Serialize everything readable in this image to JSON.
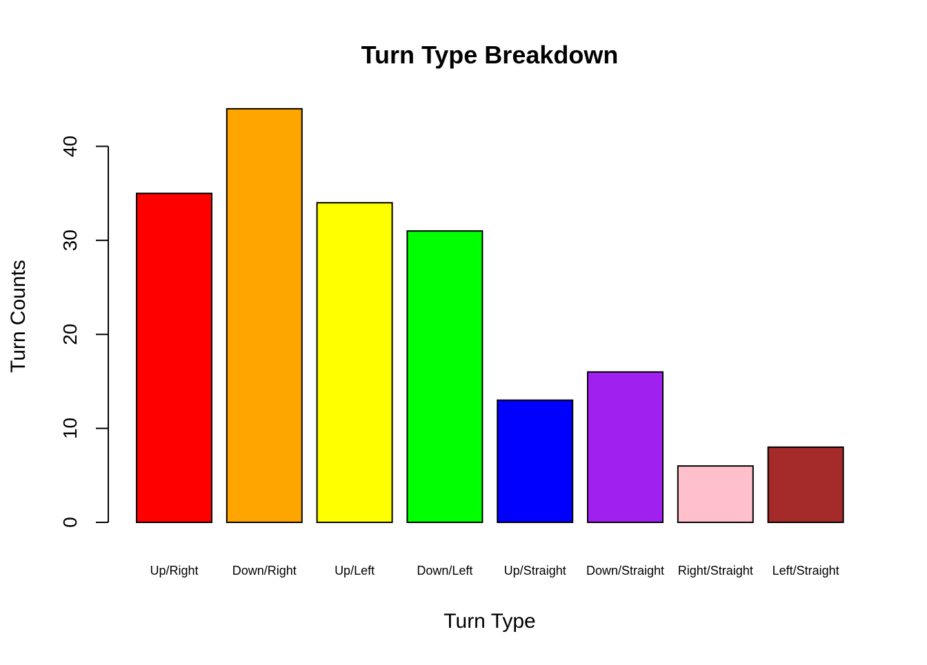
{
  "chart_data": {
    "type": "bar",
    "title": "Turn Type Breakdown",
    "xlabel": "Turn Type",
    "ylabel": "Turn Counts",
    "categories": [
      "Up/Right",
      "Down/Right",
      "Up/Left",
      "Down/Left",
      "Up/Straight",
      "Down/Straight",
      "Right/Straight",
      "Left/Straight"
    ],
    "values": [
      35,
      44,
      34,
      31,
      13,
      16,
      6,
      8
    ],
    "colors": [
      "#FF0000",
      "#FFA500",
      "#FFFF00",
      "#00FF00",
      "#0000FF",
      "#A020F0",
      "#FFC0CB",
      "#A52A2A"
    ],
    "yticks": [
      0,
      10,
      20,
      30,
      40
    ],
    "ylim": [
      0,
      44
    ],
    "grid": false,
    "legend": "none"
  }
}
